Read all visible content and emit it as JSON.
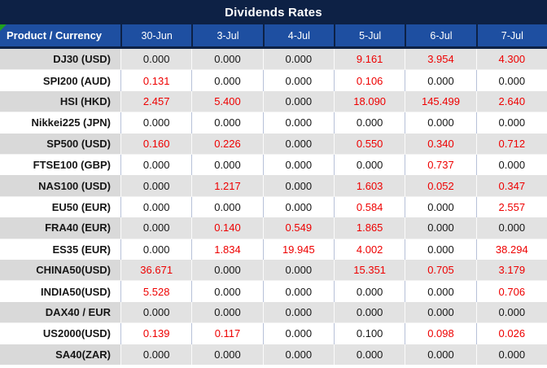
{
  "title": "Dividends Rates",
  "table": {
    "product_header": "Product / Currency",
    "date_headers": [
      "30-Jun",
      "3-Jul",
      "4-Jul",
      "5-Jul",
      "6-Jul",
      "7-Jul"
    ],
    "rows": [
      {
        "product": "DJ30 (USD)",
        "values": [
          "0.000",
          "0.000",
          "0.000",
          "9.161",
          "3.954",
          "4.300"
        ],
        "red": [
          false,
          false,
          false,
          true,
          true,
          true
        ]
      },
      {
        "product": "SPI200 (AUD)",
        "values": [
          "0.131",
          "0.000",
          "0.000",
          "0.106",
          "0.000",
          "0.000"
        ],
        "red": [
          true,
          false,
          false,
          true,
          false,
          false
        ]
      },
      {
        "product": "HSI (HKD)",
        "values": [
          "2.457",
          "5.400",
          "0.000",
          "18.090",
          "145.499",
          "2.640"
        ],
        "red": [
          true,
          true,
          false,
          true,
          true,
          true
        ]
      },
      {
        "product": "Nikkei225 (JPN)",
        "values": [
          "0.000",
          "0.000",
          "0.000",
          "0.000",
          "0.000",
          "0.000"
        ],
        "red": [
          false,
          false,
          false,
          false,
          false,
          false
        ]
      },
      {
        "product": "SP500 (USD)",
        "values": [
          "0.160",
          "0.226",
          "0.000",
          "0.550",
          "0.340",
          "0.712"
        ],
        "red": [
          true,
          true,
          false,
          true,
          true,
          true
        ]
      },
      {
        "product": "FTSE100 (GBP)",
        "values": [
          "0.000",
          "0.000",
          "0.000",
          "0.000",
          "0.737",
          "0.000"
        ],
        "red": [
          false,
          false,
          false,
          false,
          true,
          false
        ]
      },
      {
        "product": "NAS100 (USD)",
        "values": [
          "0.000",
          "1.217",
          "0.000",
          "1.603",
          "0.052",
          "0.347"
        ],
        "red": [
          false,
          true,
          false,
          true,
          true,
          true
        ]
      },
      {
        "product": "EU50 (EUR)",
        "values": [
          "0.000",
          "0.000",
          "0.000",
          "0.584",
          "0.000",
          "2.557"
        ],
        "red": [
          false,
          false,
          false,
          true,
          false,
          true
        ]
      },
      {
        "product": "FRA40 (EUR)",
        "values": [
          "0.000",
          "0.140",
          "0.549",
          "1.865",
          "0.000",
          "0.000"
        ],
        "red": [
          false,
          true,
          true,
          true,
          false,
          false
        ]
      },
      {
        "product": "ES35 (EUR)",
        "values": [
          "0.000",
          "1.834",
          "19.945",
          "4.002",
          "0.000",
          "38.294"
        ],
        "red": [
          false,
          true,
          true,
          true,
          false,
          true
        ]
      },
      {
        "product": "CHINA50(USD)",
        "values": [
          "36.671",
          "0.000",
          "0.000",
          "15.351",
          "0.705",
          "3.179"
        ],
        "red": [
          true,
          false,
          false,
          true,
          true,
          true
        ]
      },
      {
        "product": "INDIA50(USD)",
        "values": [
          "5.528",
          "0.000",
          "0.000",
          "0.000",
          "0.000",
          "0.706"
        ],
        "red": [
          true,
          false,
          false,
          false,
          false,
          true
        ]
      },
      {
        "product": "DAX40 / EUR",
        "values": [
          "0.000",
          "0.000",
          "0.000",
          "0.000",
          "0.000",
          "0.000"
        ],
        "red": [
          false,
          false,
          false,
          false,
          false,
          false
        ]
      },
      {
        "product": "US2000(USD)",
        "values": [
          "0.139",
          "0.117",
          "0.000",
          "0.100",
          "0.098",
          "0.026"
        ],
        "red": [
          true,
          true,
          false,
          false,
          true,
          true
        ]
      },
      {
        "product": "SA40(ZAR)",
        "values": [
          "0.000",
          "0.000",
          "0.000",
          "0.000",
          "0.000",
          "0.000"
        ],
        "red": [
          false,
          false,
          false,
          false,
          false,
          false
        ]
      }
    ]
  },
  "colors": {
    "title_bg": "#0d2145",
    "header_bg": "#1e4fa1",
    "negative_red": "#ee0000",
    "stripe_gray": "#d9d9d9",
    "flag_green": "#1fa01f"
  }
}
